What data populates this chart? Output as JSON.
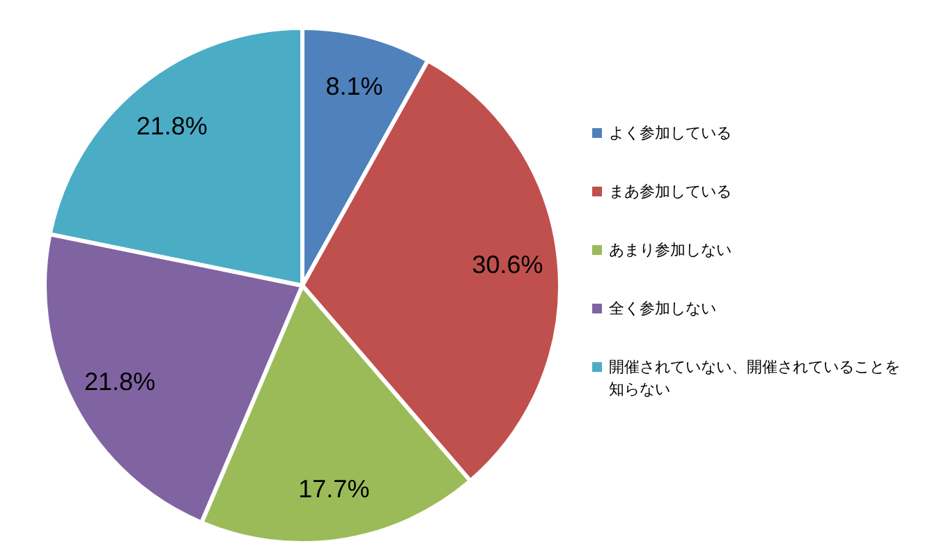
{
  "chart_data": {
    "type": "pie",
    "categories": [
      "よく参加している",
      "まあ参加している",
      "あまり参加しない",
      "全く参加しない",
      "開催されていない、開催されていることを知らない"
    ],
    "values": [
      8.1,
      30.6,
      17.7,
      21.8,
      21.8
    ],
    "value_labels": [
      "8.1%",
      "30.6%",
      "17.7%",
      "21.8%",
      "21.8%"
    ],
    "colors": [
      "#4f81bd",
      "#c0504d",
      "#9bbb59",
      "#8064a2",
      "#4bacc6"
    ],
    "legend": "right"
  }
}
